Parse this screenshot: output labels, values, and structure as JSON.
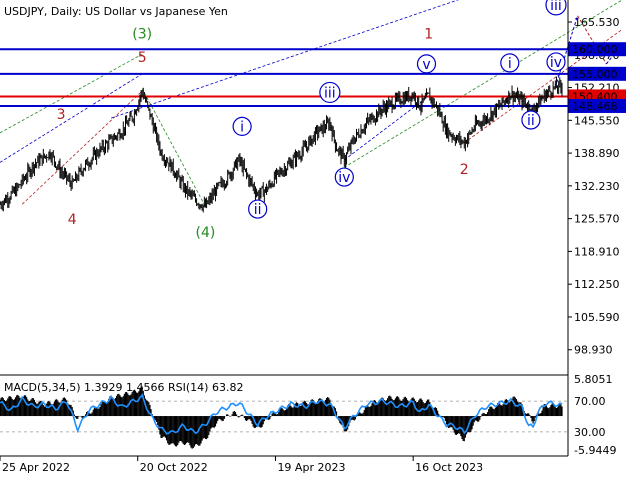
{
  "chart_data": [
    {
      "type": "line",
      "subtype": "candlestick-bars",
      "header": "USDJPY, Daily:  US Dollar vs Japanese Yen",
      "price_ticks": [
        "165.530",
        "158.870",
        "152.210",
        "145.550",
        "138.890",
        "132.230",
        "125.570",
        "118.910",
        "112.250",
        "105.590",
        "98.930"
      ],
      "ylim": [
        94.0,
        170.0
      ],
      "date_labels": [
        "25 Apr 2022",
        "20 Oct 2022",
        "19 Apr 2023",
        "16 Oct 2023"
      ],
      "date_label_index": [
        0,
        124,
        248,
        372
      ],
      "bars_total": 507,
      "levels": [
        {
          "value": 160.0,
          "label": "160.000",
          "color": "#0000cc",
          "label_fill": "#0000cc",
          "label_color": "#ffffff"
        },
        {
          "value": 155.0,
          "label": "155.000",
          "color": "#0000cc",
          "label_fill": "#0000cc",
          "label_color": "#ffffff"
        },
        {
          "value": 150.4,
          "label": "150.400",
          "color": "#e00000",
          "label_fill": "#e00000",
          "label_color": "#ffffff"
        },
        {
          "value": 148.468,
          "label": "148.468",
          "color": "#0000cc",
          "label_fill": "#0000cc",
          "label_color": "#ffffff"
        }
      ],
      "price_series": [
        [
          0,
          128.5
        ],
        [
          15,
          131.5
        ],
        [
          30,
          136.5
        ],
        [
          45,
          139.0
        ],
        [
          55,
          135.0
        ],
        [
          65,
          132.5
        ],
        [
          75,
          136.0
        ],
        [
          90,
          139.5
        ],
        [
          110,
          143.5
        ],
        [
          120,
          146.5
        ],
        [
          128,
          151.5
        ],
        [
          136,
          146.0
        ],
        [
          145,
          139.0
        ],
        [
          155,
          136.0
        ],
        [
          165,
          132.0
        ],
        [
          175,
          129.5
        ],
        [
          185,
          128.0
        ],
        [
          195,
          131.5
        ],
        [
          205,
          134.0
        ],
        [
          215,
          137.5
        ],
        [
          223,
          134.0
        ],
        [
          232,
          130.5
        ],
        [
          240,
          131.5
        ],
        [
          250,
          134.5
        ],
        [
          262,
          137.0
        ],
        [
          275,
          140.0
        ],
        [
          285,
          143.0
        ],
        [
          297,
          145.0
        ],
        [
          303,
          140.0
        ],
        [
          310,
          137.5
        ],
        [
          318,
          141.5
        ],
        [
          330,
          145.0
        ],
        [
          345,
          148.0
        ],
        [
          360,
          149.8
        ],
        [
          372,
          150.8
        ],
        [
          378,
          148.5
        ],
        [
          386,
          150.5
        ],
        [
          395,
          147.5
        ],
        [
          402,
          143.5
        ],
        [
          410,
          142.0
        ],
        [
          418,
          141.0
        ],
        [
          428,
          144.5
        ],
        [
          438,
          146.0
        ],
        [
          450,
          148.5
        ],
        [
          460,
          151.0
        ],
        [
          470,
          149.5
        ],
        [
          476,
          148.3
        ],
        [
          480,
          147.5
        ],
        [
          484,
          149.0
        ],
        [
          492,
          151.0
        ],
        [
          500,
          152.3
        ],
        [
          507,
          152.2
        ]
      ],
      "wave_labels": [
        {
          "text": "3",
          "idx": 55,
          "price": 145.8,
          "color": "#b22222"
        },
        {
          "text": "4",
          "idx": 65,
          "price": 124.5,
          "color": "#b22222"
        },
        {
          "text": "5",
          "idx": 128,
          "price": 157.4,
          "color": "#b22222"
        },
        {
          "text": "(3)",
          "idx": 128,
          "price": 162.2,
          "color": "#228b22"
        },
        {
          "text": "(4)",
          "idx": 185,
          "price": 121.8,
          "color": "#228b22"
        },
        {
          "text": "1",
          "idx": 386,
          "price": 162.2,
          "color": "#b22222"
        },
        {
          "text": "2",
          "idx": 418,
          "price": 134.6,
          "color": "#b22222"
        },
        {
          "text": "i",
          "idx": 218,
          "price": 143.3,
          "color": "#0000cc",
          "circled": true
        },
        {
          "text": "ii",
          "idx": 232,
          "price": 126.5,
          "color": "#0000cc",
          "circled": true
        },
        {
          "text": "iii",
          "idx": 297,
          "price": 150.2,
          "color": "#0000cc",
          "circled": true
        },
        {
          "text": "iv",
          "idx": 310,
          "price": 133.0,
          "color": "#0000cc",
          "circled": true
        },
        {
          "text": "v",
          "idx": 384,
          "price": 156.0,
          "color": "#0000cc",
          "circled": true
        },
        {
          "text": "i",
          "idx": 459,
          "price": 156.2,
          "color": "#0000cc",
          "circled": true
        },
        {
          "text": "ii",
          "idx": 478,
          "price": 144.6,
          "color": "#0000cc",
          "circled": true
        },
        {
          "text": "iii",
          "idx": 520,
          "price": 168.0,
          "color": "#0000cc",
          "circled": true
        },
        {
          "text": "iv",
          "idx": 546,
          "price": 156.4,
          "color": "#0000cc",
          "circled": true
        }
      ],
      "projection_points": [
        {
          "from": [
            500,
            152.3
          ],
          "to": [
            520,
            166.8
          ],
          "color": "#0000cc",
          "dash": true
        },
        {
          "from": [
            520,
            166.8
          ],
          "to": [
            546,
            157.0
          ],
          "color": "#b22222",
          "dash": true
        },
        {
          "from": [
            546,
            157.0
          ],
          "to": [
            558,
            160.5
          ],
          "color": "#0000cc",
          "dash": true
        }
      ],
      "channel_lines": [
        {
          "from": [
            0,
            137.0
          ],
          "to": [
            128,
            155.0
          ],
          "color": "#0000cc"
        },
        {
          "from": [
            0,
            143.0
          ],
          "to": [
            128,
            159.0
          ],
          "color": "#228b22"
        },
        {
          "from": [
            100,
            146.0
          ],
          "to": [
            490,
            176.0
          ],
          "color": "#0000cc"
        },
        {
          "from": [
            310,
            136.0
          ],
          "to": [
            560,
            170.0
          ],
          "color": "#228b22"
        },
        {
          "from": [
            310,
            137.5
          ],
          "to": [
            386,
            150.5
          ],
          "color": "#0000cc"
        },
        {
          "from": [
            418,
            141.0
          ],
          "to": [
            560,
            164.0
          ],
          "color": "#b22222"
        },
        {
          "from": [
            128,
            152.0
          ],
          "to": [
            185,
            128.0
          ],
          "color": "#228b22"
        },
        {
          "from": [
            20,
            128.5
          ],
          "to": [
            128,
            151.5
          ],
          "color": "#b22222"
        }
      ]
    },
    {
      "type": "line",
      "subtype": "oscillator",
      "header": "MACD(5,34,5) 1.3929 1.4566 RSI(14) 63.82",
      "ticks": [
        "5.8051",
        "70.00",
        "30.00",
        "-5.9449"
      ],
      "rsi_levels": [
        70,
        30
      ],
      "macd_range": [
        -5.9449,
        5.8051
      ],
      "rsi_series": [
        [
          0,
          68
        ],
        [
          10,
          58
        ],
        [
          20,
          72
        ],
        [
          30,
          63
        ],
        [
          40,
          66
        ],
        [
          50,
          60
        ],
        [
          60,
          70
        ],
        [
          70,
          34
        ],
        [
          80,
          58
        ],
        [
          90,
          66
        ],
        [
          100,
          73
        ],
        [
          110,
          62
        ],
        [
          120,
          70
        ],
        [
          128,
          75
        ],
        [
          136,
          50
        ],
        [
          145,
          33
        ],
        [
          155,
          28
        ],
        [
          165,
          38
        ],
        [
          175,
          29
        ],
        [
          185,
          40
        ],
        [
          195,
          56
        ],
        [
          205,
          62
        ],
        [
          215,
          68
        ],
        [
          223,
          55
        ],
        [
          232,
          40
        ],
        [
          240,
          50
        ],
        [
          250,
          58
        ],
        [
          262,
          66
        ],
        [
          275,
          63
        ],
        [
          285,
          70
        ],
        [
          297,
          66
        ],
        [
          303,
          52
        ],
        [
          310,
          35
        ],
        [
          318,
          50
        ],
        [
          330,
          66
        ],
        [
          345,
          70
        ],
        [
          360,
          63
        ],
        [
          372,
          68
        ],
        [
          378,
          55
        ],
        [
          386,
          65
        ],
        [
          395,
          50
        ],
        [
          402,
          40
        ],
        [
          410,
          37
        ],
        [
          418,
          30
        ],
        [
          428,
          52
        ],
        [
          438,
          63
        ],
        [
          450,
          67
        ],
        [
          460,
          70
        ],
        [
          470,
          62
        ],
        [
          476,
          38
        ],
        [
          480,
          36
        ],
        [
          484,
          55
        ],
        [
          492,
          68
        ],
        [
          500,
          66
        ],
        [
          507,
          64
        ]
      ],
      "macd_series": [
        [
          0,
          2.5
        ],
        [
          20,
          3.0
        ],
        [
          40,
          1.8
        ],
        [
          60,
          2.6
        ],
        [
          70,
          -0.5
        ],
        [
          85,
          1.0
        ],
        [
          100,
          2.8
        ],
        [
          120,
          3.6
        ],
        [
          128,
          4.2
        ],
        [
          136,
          1.0
        ],
        [
          145,
          -3.0
        ],
        [
          155,
          -4.5
        ],
        [
          165,
          -4.0
        ],
        [
          175,
          -4.8
        ],
        [
          185,
          -3.5
        ],
        [
          195,
          -1.0
        ],
        [
          210,
          0.5
        ],
        [
          223,
          -0.5
        ],
        [
          232,
          -2.0
        ],
        [
          245,
          0.2
        ],
        [
          260,
          1.5
        ],
        [
          280,
          2.2
        ],
        [
          297,
          2.6
        ],
        [
          303,
          0.5
        ],
        [
          310,
          -2.5
        ],
        [
          318,
          -0.5
        ],
        [
          335,
          2.0
        ],
        [
          350,
          2.8
        ],
        [
          372,
          2.5
        ],
        [
          386,
          2.2
        ],
        [
          395,
          0.5
        ],
        [
          405,
          -1.8
        ],
        [
          418,
          -3.6
        ],
        [
          428,
          -1.0
        ],
        [
          440,
          1.0
        ],
        [
          455,
          2.2
        ],
        [
          465,
          2.8
        ],
        [
          472,
          1.0
        ],
        [
          480,
          -0.8
        ],
        [
          490,
          1.5
        ],
        [
          500,
          1.6
        ],
        [
          507,
          1.39
        ]
      ]
    }
  ]
}
